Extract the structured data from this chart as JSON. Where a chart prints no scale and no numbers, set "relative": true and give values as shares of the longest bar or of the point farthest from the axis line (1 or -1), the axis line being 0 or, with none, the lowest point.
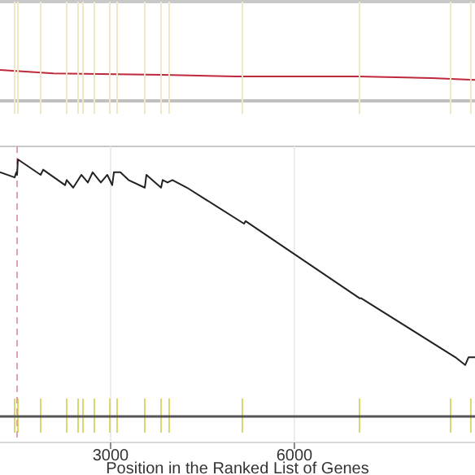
{
  "chart_data": [
    {
      "type": "line",
      "relative": true,
      "xlim": [
        1195,
        8948
      ],
      "x": [
        1195,
        2070,
        3850,
        5050,
        7040,
        8240,
        8948
      ],
      "series": [
        {
          "color": "#c0283c",
          "values": [
            1,
            0.89,
            0.84,
            0.79,
            0.79,
            0.74,
            0.68
          ]
        }
      ],
      "ref_lines": [
        {
          "axis": "x",
          "value": 1434,
          "color": "#eee8c8"
        },
        {
          "axis": "x",
          "value": 1487,
          "color": "#eee8c8"
        },
        {
          "axis": "x",
          "value": 1859,
          "color": "#eee8c8"
        },
        {
          "axis": "x",
          "value": 2284,
          "color": "#eee8c8"
        },
        {
          "axis": "x",
          "value": 2470,
          "color": "#eee8c8"
        },
        {
          "axis": "x",
          "value": 2550,
          "color": "#eee8c8"
        },
        {
          "axis": "x",
          "value": 2735,
          "color": "#eee8c8"
        },
        {
          "axis": "x",
          "value": 2987,
          "color": "#eee8c8"
        },
        {
          "axis": "x",
          "value": 3107,
          "color": "#eee8c8"
        },
        {
          "axis": "x",
          "value": 3558,
          "color": "#eee8c8"
        },
        {
          "axis": "x",
          "value": 3824,
          "color": "#eee8c8"
        },
        {
          "axis": "x",
          "value": 3956,
          "color": "#eee8c8"
        },
        {
          "axis": "x",
          "value": 5151,
          "color": "#eee8c8"
        },
        {
          "axis": "x",
          "value": 7063,
          "color": "#eee8c8"
        },
        {
          "axis": "x",
          "value": 8550,
          "color": "#eee8c8"
        },
        {
          "axis": "x",
          "value": 8880,
          "color": "#eee8c8"
        }
      ]
    },
    {
      "type": "line",
      "relative": true,
      "xlim": [
        1195,
        8948
      ],
      "grid": "x",
      "xticks": [
        3000,
        6000
      ],
      "xlabel": "Position in the Ranked List of Genes",
      "x": [
        1195,
        1434,
        1461,
        1474,
        1487,
        1859,
        1899,
        2257,
        2284,
        2390,
        2523,
        2629,
        2708,
        2841,
        2947,
        3027,
        3054,
        3160,
        3293,
        3558,
        3585,
        3824,
        3850,
        3930,
        4009,
        4248,
        5178,
        5204,
        7063,
        7089,
        8629,
        8788,
        8842,
        8948
      ],
      "series": [
        {
          "color": "#222222",
          "values": [
            0.95,
            0.93,
            0.95,
            0.94,
            1,
            0.94,
            0.96,
            0.9,
            0.92,
            0.89,
            0.94,
            0.91,
            0.95,
            0.91,
            0.94,
            0.9,
            0.95,
            0.95,
            0.92,
            0.89,
            0.94,
            0.89,
            0.92,
            0.91,
            0.92,
            0.89,
            0.75,
            0.76,
            0.46,
            0.46,
            0.23,
            0.2,
            0.23,
            0.23
          ]
        }
      ],
      "ref_lines": [
        {
          "axis": "x",
          "value": 1474,
          "color": "#e0a0b0",
          "line_style": "dashed"
        }
      ]
    }
  ]
}
